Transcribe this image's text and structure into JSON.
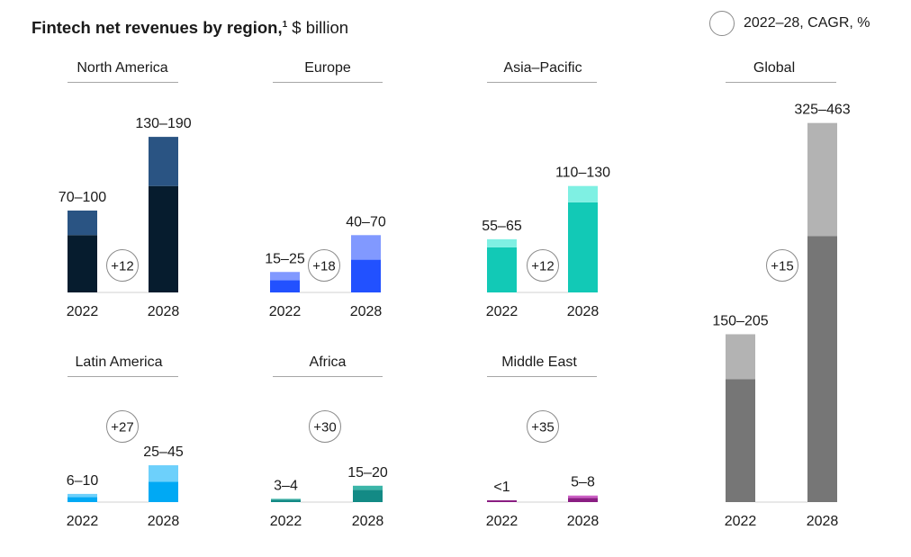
{
  "header": {
    "title": "Fintech net revenues by region,",
    "footnote_marker": "1",
    "unit": "$ billion"
  },
  "legend": {
    "label": "2022–28, CAGR, %"
  },
  "chart_data": [
    {
      "type": "bar",
      "stacked": true,
      "title": "North America",
      "categories": [
        "2022",
        "2028"
      ],
      "series": [
        {
          "values": [
            70,
            130
          ],
          "color": "#061c2e"
        },
        {
          "values": [
            30,
            60
          ],
          "color": "#2a5483"
        }
      ],
      "bar_labels": [
        "70–100",
        "130–190"
      ],
      "cagr": "+12",
      "ylim": [
        0,
        500
      ]
    },
    {
      "type": "bar",
      "stacked": true,
      "title": "Europe",
      "categories": [
        "2022",
        "2028"
      ],
      "series": [
        {
          "values": [
            15,
            40
          ],
          "color": "#2251ff"
        },
        {
          "values": [
            10,
            30
          ],
          "color": "#8199ff"
        }
      ],
      "bar_labels": [
        "15–25",
        "40–70"
      ],
      "cagr": "+18",
      "ylim": [
        0,
        500
      ]
    },
    {
      "type": "bar",
      "stacked": true,
      "title": "Asia–Pacific",
      "categories": [
        "2022",
        "2028"
      ],
      "series": [
        {
          "values": [
            55,
            110
          ],
          "color": "#12c9b6"
        },
        {
          "values": [
            10,
            20
          ],
          "color": "#7ff0e3"
        }
      ],
      "bar_labels": [
        "55–65",
        "110–130"
      ],
      "cagr": "+12",
      "ylim": [
        0,
        500
      ]
    },
    {
      "type": "bar",
      "stacked": true,
      "title": "Global",
      "categories": [
        "2022",
        "2028"
      ],
      "series": [
        {
          "values": [
            150,
            325
          ],
          "color": "#767676"
        },
        {
          "values": [
            55,
            138
          ],
          "color": "#b3b3b3"
        }
      ],
      "bar_labels": [
        "150–205",
        "325–463"
      ],
      "cagr": "+15",
      "ylim": [
        0,
        500
      ]
    },
    {
      "type": "bar",
      "stacked": true,
      "title": "Latin America",
      "categories": [
        "2022",
        "2028"
      ],
      "series": [
        {
          "values": [
            6,
            25
          ],
          "color": "#00a9f4"
        },
        {
          "values": [
            4,
            20
          ],
          "color": "#6dd0fb"
        }
      ],
      "bar_labels": [
        "6–10",
        "25–45"
      ],
      "cagr": "+27",
      "ylim": [
        0,
        500
      ]
    },
    {
      "type": "bar",
      "stacked": true,
      "title": "Africa",
      "categories": [
        "2022",
        "2028"
      ],
      "series": [
        {
          "values": [
            3,
            15
          ],
          "color": "#138a85"
        },
        {
          "values": [
            1,
            5
          ],
          "color": "#3bb5a8"
        }
      ],
      "bar_labels": [
        "3–4",
        "15–20"
      ],
      "cagr": "+30",
      "ylim": [
        0,
        500
      ]
    },
    {
      "type": "bar",
      "stacked": true,
      "title": "Middle East",
      "categories": [
        "2022",
        "2028"
      ],
      "series": [
        {
          "values": [
            0.7,
            5
          ],
          "color": "#8a1e82"
        },
        {
          "values": [
            0,
            3
          ],
          "color": "#cb5fc4"
        }
      ],
      "bar_labels": [
        "<1",
        "5–8"
      ],
      "cagr": "+35",
      "ylim": [
        0,
        500
      ]
    }
  ]
}
